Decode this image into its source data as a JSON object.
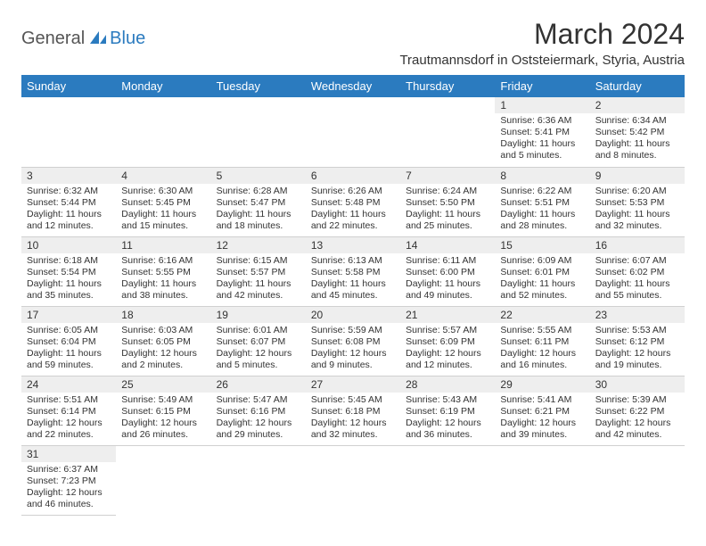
{
  "logo": {
    "part1": "General",
    "part2": "Blue"
  },
  "title": "March 2024",
  "location": "Trautmannsdorf in Oststeiermark, Styria, Austria",
  "colors": {
    "header_bg": "#2b7bbf",
    "header_text": "#ffffff",
    "daynum_bg": "#eeeeee",
    "border": "#d0d0d0",
    "text": "#333333",
    "logo_accent": "#2b7bbf"
  },
  "weekdays": [
    "Sunday",
    "Monday",
    "Tuesday",
    "Wednesday",
    "Thursday",
    "Friday",
    "Saturday"
  ],
  "first_weekday": 5,
  "days_in_month": 31,
  "days": {
    "1": {
      "sunrise": "6:36 AM",
      "sunset": "5:41 PM",
      "daylight": "11 hours and 5 minutes."
    },
    "2": {
      "sunrise": "6:34 AM",
      "sunset": "5:42 PM",
      "daylight": "11 hours and 8 minutes."
    },
    "3": {
      "sunrise": "6:32 AM",
      "sunset": "5:44 PM",
      "daylight": "11 hours and 12 minutes."
    },
    "4": {
      "sunrise": "6:30 AM",
      "sunset": "5:45 PM",
      "daylight": "11 hours and 15 minutes."
    },
    "5": {
      "sunrise": "6:28 AM",
      "sunset": "5:47 PM",
      "daylight": "11 hours and 18 minutes."
    },
    "6": {
      "sunrise": "6:26 AM",
      "sunset": "5:48 PM",
      "daylight": "11 hours and 22 minutes."
    },
    "7": {
      "sunrise": "6:24 AM",
      "sunset": "5:50 PM",
      "daylight": "11 hours and 25 minutes."
    },
    "8": {
      "sunrise": "6:22 AM",
      "sunset": "5:51 PM",
      "daylight": "11 hours and 28 minutes."
    },
    "9": {
      "sunrise": "6:20 AM",
      "sunset": "5:53 PM",
      "daylight": "11 hours and 32 minutes."
    },
    "10": {
      "sunrise": "6:18 AM",
      "sunset": "5:54 PM",
      "daylight": "11 hours and 35 minutes."
    },
    "11": {
      "sunrise": "6:16 AM",
      "sunset": "5:55 PM",
      "daylight": "11 hours and 38 minutes."
    },
    "12": {
      "sunrise": "6:15 AM",
      "sunset": "5:57 PM",
      "daylight": "11 hours and 42 minutes."
    },
    "13": {
      "sunrise": "6:13 AM",
      "sunset": "5:58 PM",
      "daylight": "11 hours and 45 minutes."
    },
    "14": {
      "sunrise": "6:11 AM",
      "sunset": "6:00 PM",
      "daylight": "11 hours and 49 minutes."
    },
    "15": {
      "sunrise": "6:09 AM",
      "sunset": "6:01 PM",
      "daylight": "11 hours and 52 minutes."
    },
    "16": {
      "sunrise": "6:07 AM",
      "sunset": "6:02 PM",
      "daylight": "11 hours and 55 minutes."
    },
    "17": {
      "sunrise": "6:05 AM",
      "sunset": "6:04 PM",
      "daylight": "11 hours and 59 minutes."
    },
    "18": {
      "sunrise": "6:03 AM",
      "sunset": "6:05 PM",
      "daylight": "12 hours and 2 minutes."
    },
    "19": {
      "sunrise": "6:01 AM",
      "sunset": "6:07 PM",
      "daylight": "12 hours and 5 minutes."
    },
    "20": {
      "sunrise": "5:59 AM",
      "sunset": "6:08 PM",
      "daylight": "12 hours and 9 minutes."
    },
    "21": {
      "sunrise": "5:57 AM",
      "sunset": "6:09 PM",
      "daylight": "12 hours and 12 minutes."
    },
    "22": {
      "sunrise": "5:55 AM",
      "sunset": "6:11 PM",
      "daylight": "12 hours and 16 minutes."
    },
    "23": {
      "sunrise": "5:53 AM",
      "sunset": "6:12 PM",
      "daylight": "12 hours and 19 minutes."
    },
    "24": {
      "sunrise": "5:51 AM",
      "sunset": "6:14 PM",
      "daylight": "12 hours and 22 minutes."
    },
    "25": {
      "sunrise": "5:49 AM",
      "sunset": "6:15 PM",
      "daylight": "12 hours and 26 minutes."
    },
    "26": {
      "sunrise": "5:47 AM",
      "sunset": "6:16 PM",
      "daylight": "12 hours and 29 minutes."
    },
    "27": {
      "sunrise": "5:45 AM",
      "sunset": "6:18 PM",
      "daylight": "12 hours and 32 minutes."
    },
    "28": {
      "sunrise": "5:43 AM",
      "sunset": "6:19 PM",
      "daylight": "12 hours and 36 minutes."
    },
    "29": {
      "sunrise": "5:41 AM",
      "sunset": "6:21 PM",
      "daylight": "12 hours and 39 minutes."
    },
    "30": {
      "sunrise": "5:39 AM",
      "sunset": "6:22 PM",
      "daylight": "12 hours and 42 minutes."
    },
    "31": {
      "sunrise": "6:37 AM",
      "sunset": "7:23 PM",
      "daylight": "12 hours and 46 minutes."
    }
  },
  "labels": {
    "sunrise": "Sunrise:",
    "sunset": "Sunset:",
    "daylight": "Daylight:"
  }
}
